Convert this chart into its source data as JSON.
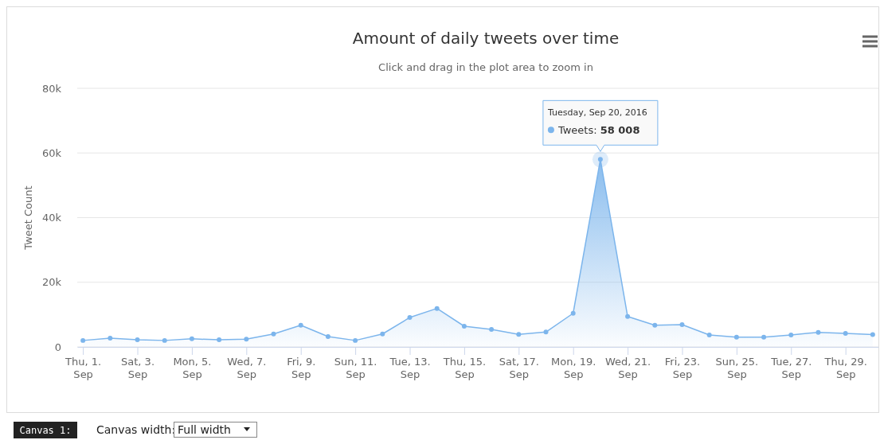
{
  "chart_data": {
    "type": "area",
    "title": "Amount of daily tweets over time",
    "subtitle": "Click and drag in the plot area to zoom in",
    "ylabel": "Tweet Count",
    "x": [
      "2016-09-01",
      "2016-09-02",
      "2016-09-03",
      "2016-09-04",
      "2016-09-05",
      "2016-09-06",
      "2016-09-07",
      "2016-09-08",
      "2016-09-09",
      "2016-09-10",
      "2016-09-11",
      "2016-09-12",
      "2016-09-13",
      "2016-09-14",
      "2016-09-15",
      "2016-09-16",
      "2016-09-17",
      "2016-09-18",
      "2016-09-19",
      "2016-09-20",
      "2016-09-21",
      "2016-09-22",
      "2016-09-23",
      "2016-09-24",
      "2016-09-25",
      "2016-09-26",
      "2016-09-27",
      "2016-09-28",
      "2016-09-29",
      "2016-09-30"
    ],
    "series": [
      {
        "color": "#7cb5ec",
        "values": [
          2000,
          2700,
          2200,
          2000,
          2500,
          2200,
          2400,
          4000,
          6700,
          3200,
          2000,
          4000,
          9100,
          11900,
          6400,
          5400,
          3900,
          4600,
          10400,
          58008,
          9400,
          6700,
          6900,
          3700,
          3000,
          3000,
          3700,
          4500,
          4200,
          3800
        ]
      }
    ],
    "xlim": [
      "2016-08-31T19:00",
      "2016-09-30T05:00"
    ],
    "xticks": [
      {
        "value": "2016-09-01",
        "label": "Thu, 1. Sep"
      },
      {
        "value": "2016-09-03",
        "label": "Sat, 3. Sep"
      },
      {
        "value": "2016-09-05",
        "label": "Mon, 5. Sep"
      },
      {
        "value": "2016-09-07",
        "label": "Wed, 7. Sep"
      },
      {
        "value": "2016-09-09",
        "label": "Fri, 9. Sep"
      },
      {
        "value": "2016-09-11",
        "label": "Sun, 11. Sep"
      },
      {
        "value": "2016-09-13",
        "label": "Tue, 13. Sep"
      },
      {
        "value": "2016-09-15",
        "label": "Thu, 15. Sep"
      },
      {
        "value": "2016-09-17",
        "label": "Sat, 17. Sep"
      },
      {
        "value": "2016-09-19",
        "label": "Mon, 19. Sep"
      },
      {
        "value": "2016-09-21",
        "label": "Wed, 21. Sep"
      },
      {
        "value": "2016-09-23",
        "label": "Fri, 23. Sep"
      },
      {
        "value": "2016-09-25",
        "label": "Sun, 25. Sep"
      },
      {
        "value": "2016-09-27",
        "label": "Tue, 27. Sep"
      },
      {
        "value": "2016-09-29",
        "label": "Thu, 29. Sep"
      }
    ],
    "ylim": [
      0,
      80000
    ],
    "yticks": [
      {
        "value": 0,
        "label": "0"
      },
      {
        "value": 20000,
        "label": "20k"
      },
      {
        "value": 40000,
        "label": "40k"
      },
      {
        "value": 60000,
        "label": "60k"
      },
      {
        "value": 80000,
        "label": "80k"
      }
    ],
    "grid": "y",
    "marker": "circle",
    "annotations": [
      "Tuesday, Sep 20, 2016",
      "Tweets: 58 008",
      "Canvas 1:",
      "Canvas width:",
      "Full width"
    ]
  }
}
